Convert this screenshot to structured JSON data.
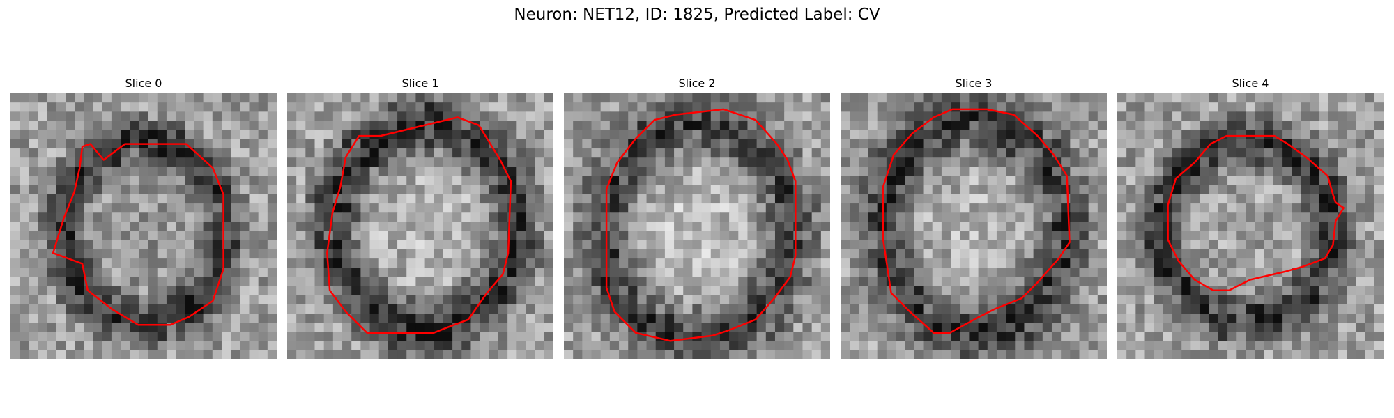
{
  "figure": {
    "title": "Neuron: NET12, ID: 1825, Predicted Label: CV"
  },
  "panels": [
    {
      "title": "Slice 0",
      "outline_color": "#ff0000"
    },
    {
      "title": "Slice 1",
      "outline_color": "#ff0000"
    },
    {
      "title": "Slice 2",
      "outline_color": "#ff0000"
    },
    {
      "title": "Slice 3",
      "outline_color": "#ff0000"
    },
    {
      "title": "Slice 4",
      "outline_color": "#ff0000"
    }
  ]
}
